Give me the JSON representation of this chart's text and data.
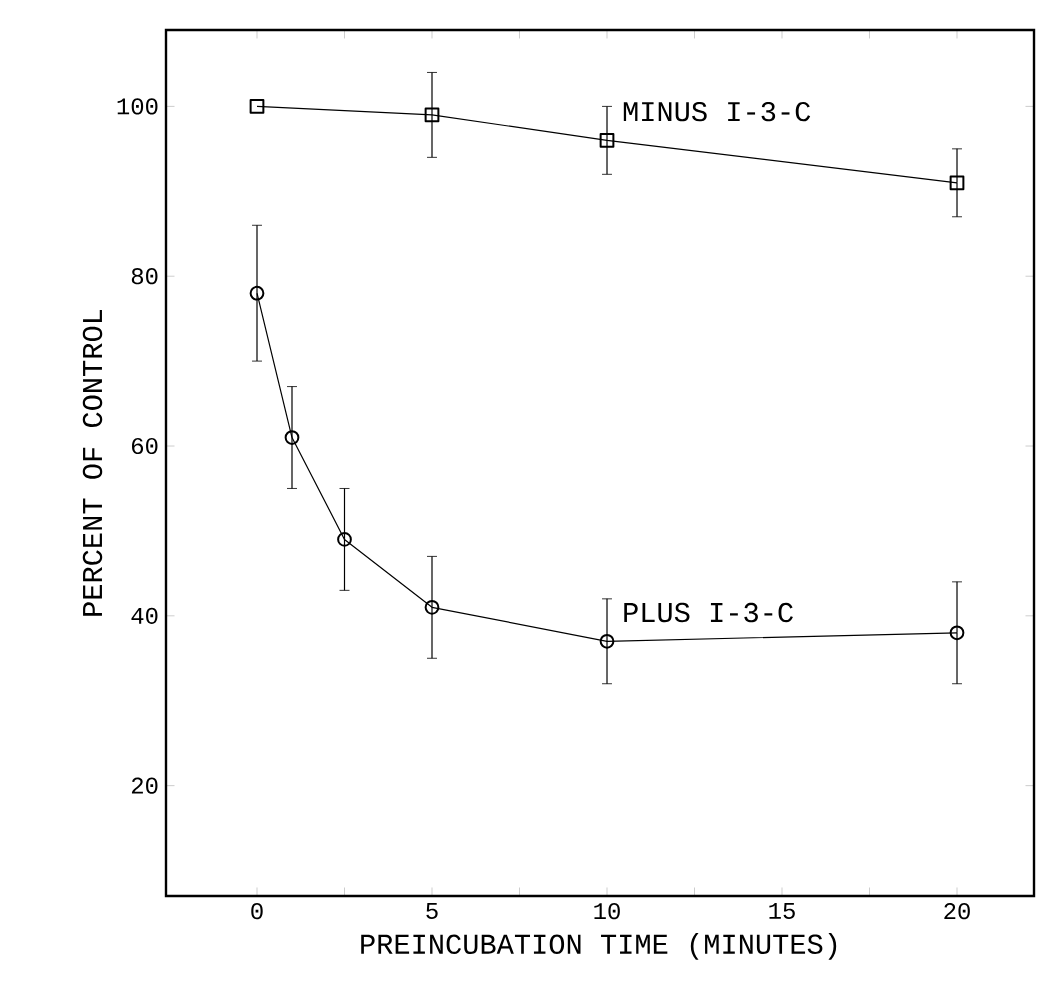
{
  "chart_data": {
    "type": "line",
    "xlabel": "PREINCUBATION TIME (MINUTES)",
    "ylabel": "PERCENT OF CONTROL",
    "xlim": [
      -2.6,
      22.2
    ],
    "xticks": [
      0,
      {
        "value": 2.5,
        "label": null
      },
      5,
      {
        "value": 7.5,
        "label": null
      },
      10,
      {
        "value": 12.5,
        "label": null
      },
      15,
      {
        "value": 17.5,
        "label": null
      },
      20
    ],
    "ylim": [
      7,
      109
    ],
    "yticks": [
      20,
      40,
      60,
      80,
      100
    ],
    "grid": false,
    "legend": false,
    "line_style": "solid",
    "series": [
      {
        "name": "MINUS I-3-C",
        "color": "#000000",
        "marker": "square",
        "x": [
          0,
          5,
          10,
          20
        ],
        "values": [
          100,
          99,
          96,
          91
        ],
        "errors": [
          null,
          5,
          4,
          4
        ]
      },
      {
        "name": "PLUS I-3-C",
        "color": "#000000",
        "marker": "circle",
        "x": [
          0,
          1,
          2.5,
          5,
          10,
          20
        ],
        "values": [
          78,
          61,
          49,
          41,
          37,
          38
        ],
        "errors": [
          8,
          6,
          6,
          6,
          5,
          6
        ]
      }
    ]
  }
}
